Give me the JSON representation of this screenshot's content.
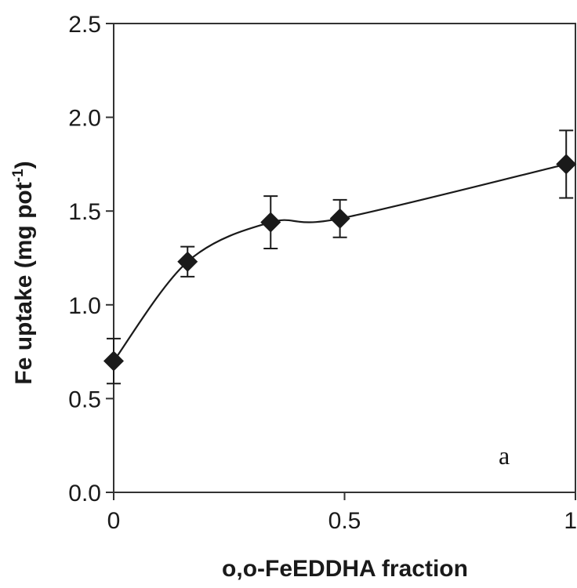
{
  "chart_data": {
    "type": "line",
    "xlabel": "o,o-FeEDDHA fraction",
    "ylabel": {
      "main": "Fe uptake (mg pot",
      "superscript": "-1",
      "close": ")"
    },
    "xlim": [
      0,
      1
    ],
    "ylim": [
      0,
      2.5
    ],
    "x_ticks": [
      "0",
      "0.5",
      "1"
    ],
    "x_tick_values": [
      0,
      0.5,
      1
    ],
    "y_ticks": [
      "0.0",
      "0.5",
      "1.0",
      "1.5",
      "2.0",
      "2.5"
    ],
    "y_tick_values": [
      0,
      0.5,
      1.0,
      1.5,
      2.0,
      2.5
    ],
    "grid": false,
    "marker": "diamond",
    "color": "#1a1a1a",
    "smooth_line": true,
    "annotation": "a",
    "series": [
      {
        "x": [
          0,
          0.16,
          0.34,
          0.49,
          0.98
        ],
        "y": [
          0.7,
          1.23,
          1.44,
          1.46,
          1.75
        ],
        "error": [
          0.12,
          0.08,
          0.14,
          0.1,
          0.18
        ]
      }
    ]
  }
}
